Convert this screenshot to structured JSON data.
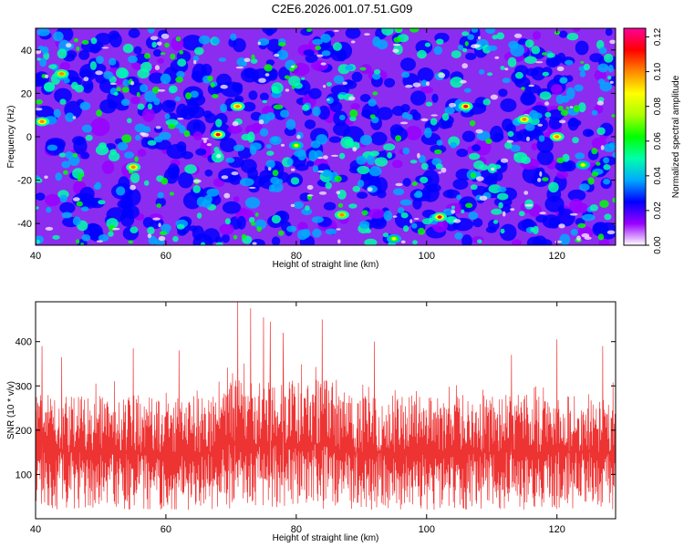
{
  "title": "C2E6.2026.001.07.51.G09",
  "colors": {
    "snr_line": "#ee3333",
    "colormap": [
      "#ffffff",
      "#9900ff",
      "#0000ff",
      "#00aaff",
      "#00ffaa",
      "#00ff00",
      "#aaff00",
      "#ffff00",
      "#ff8800",
      "#ff0000",
      "#ff0099"
    ]
  },
  "chart_data": [
    {
      "type": "heatmap",
      "xlabel": "Height of straight line (km)",
      "ylabel": "Frequency (Hz)",
      "xlim": [
        40,
        129
      ],
      "ylim": [
        -50,
        50
      ],
      "xticks": [
        40,
        60,
        80,
        100,
        120
      ],
      "yticks": [
        -40,
        -20,
        0,
        20,
        40
      ],
      "colorbar": {
        "label": "Normalized spectral amplitude",
        "range": [
          0.0,
          0.125
        ],
        "ticks": [
          "0.00",
          "0.02",
          "0.04",
          "0.06",
          "0.08",
          "0.10",
          "0.12"
        ]
      },
      "peaks": [
        {
          "x": 41,
          "y": 7,
          "v": 0.11
        },
        {
          "x": 44,
          "y": 29,
          "v": 0.1
        },
        {
          "x": 55,
          "y": -14,
          "v": 0.11
        },
        {
          "x": 68,
          "y": 1,
          "v": 0.12
        },
        {
          "x": 71,
          "y": 14,
          "v": 0.11
        },
        {
          "x": 80,
          "y": -4,
          "v": 0.09
        },
        {
          "x": 87,
          "y": -36,
          "v": 0.1
        },
        {
          "x": 95,
          "y": -47,
          "v": 0.09
        },
        {
          "x": 102,
          "y": -37,
          "v": 0.12
        },
        {
          "x": 106,
          "y": 14,
          "v": 0.12
        },
        {
          "x": 115,
          "y": 8,
          "v": 0.11
        },
        {
          "x": 120,
          "y": 0,
          "v": 0.11
        },
        {
          "x": 124,
          "y": -13,
          "v": 0.09
        }
      ]
    },
    {
      "type": "line",
      "xlabel": "Height of straight line (km)",
      "ylabel": "SNR (10 * v/v)",
      "xlim": [
        40,
        129
      ],
      "ylim": [
        0,
        490
      ],
      "xticks": [
        40,
        60,
        80,
        100,
        120
      ],
      "yticks": [
        100,
        200,
        300,
        400
      ],
      "series": [
        {
          "name": "SNR",
          "baseline_mean": 150,
          "band_low": 60,
          "band_high": 280,
          "spikes": [
            {
              "x": 41,
              "y": 390
            },
            {
              "x": 44,
              "y": 365
            },
            {
              "x": 55,
              "y": 385
            },
            {
              "x": 62,
              "y": 380
            },
            {
              "x": 71,
              "y": 490
            },
            {
              "x": 73,
              "y": 475
            },
            {
              "x": 75,
              "y": 455
            },
            {
              "x": 76,
              "y": 445
            },
            {
              "x": 78,
              "y": 420
            },
            {
              "x": 84,
              "y": 450
            },
            {
              "x": 92,
              "y": 400
            },
            {
              "x": 113,
              "y": 370
            },
            {
              "x": 120,
              "y": 405
            },
            {
              "x": 127,
              "y": 390
            }
          ]
        }
      ]
    }
  ]
}
